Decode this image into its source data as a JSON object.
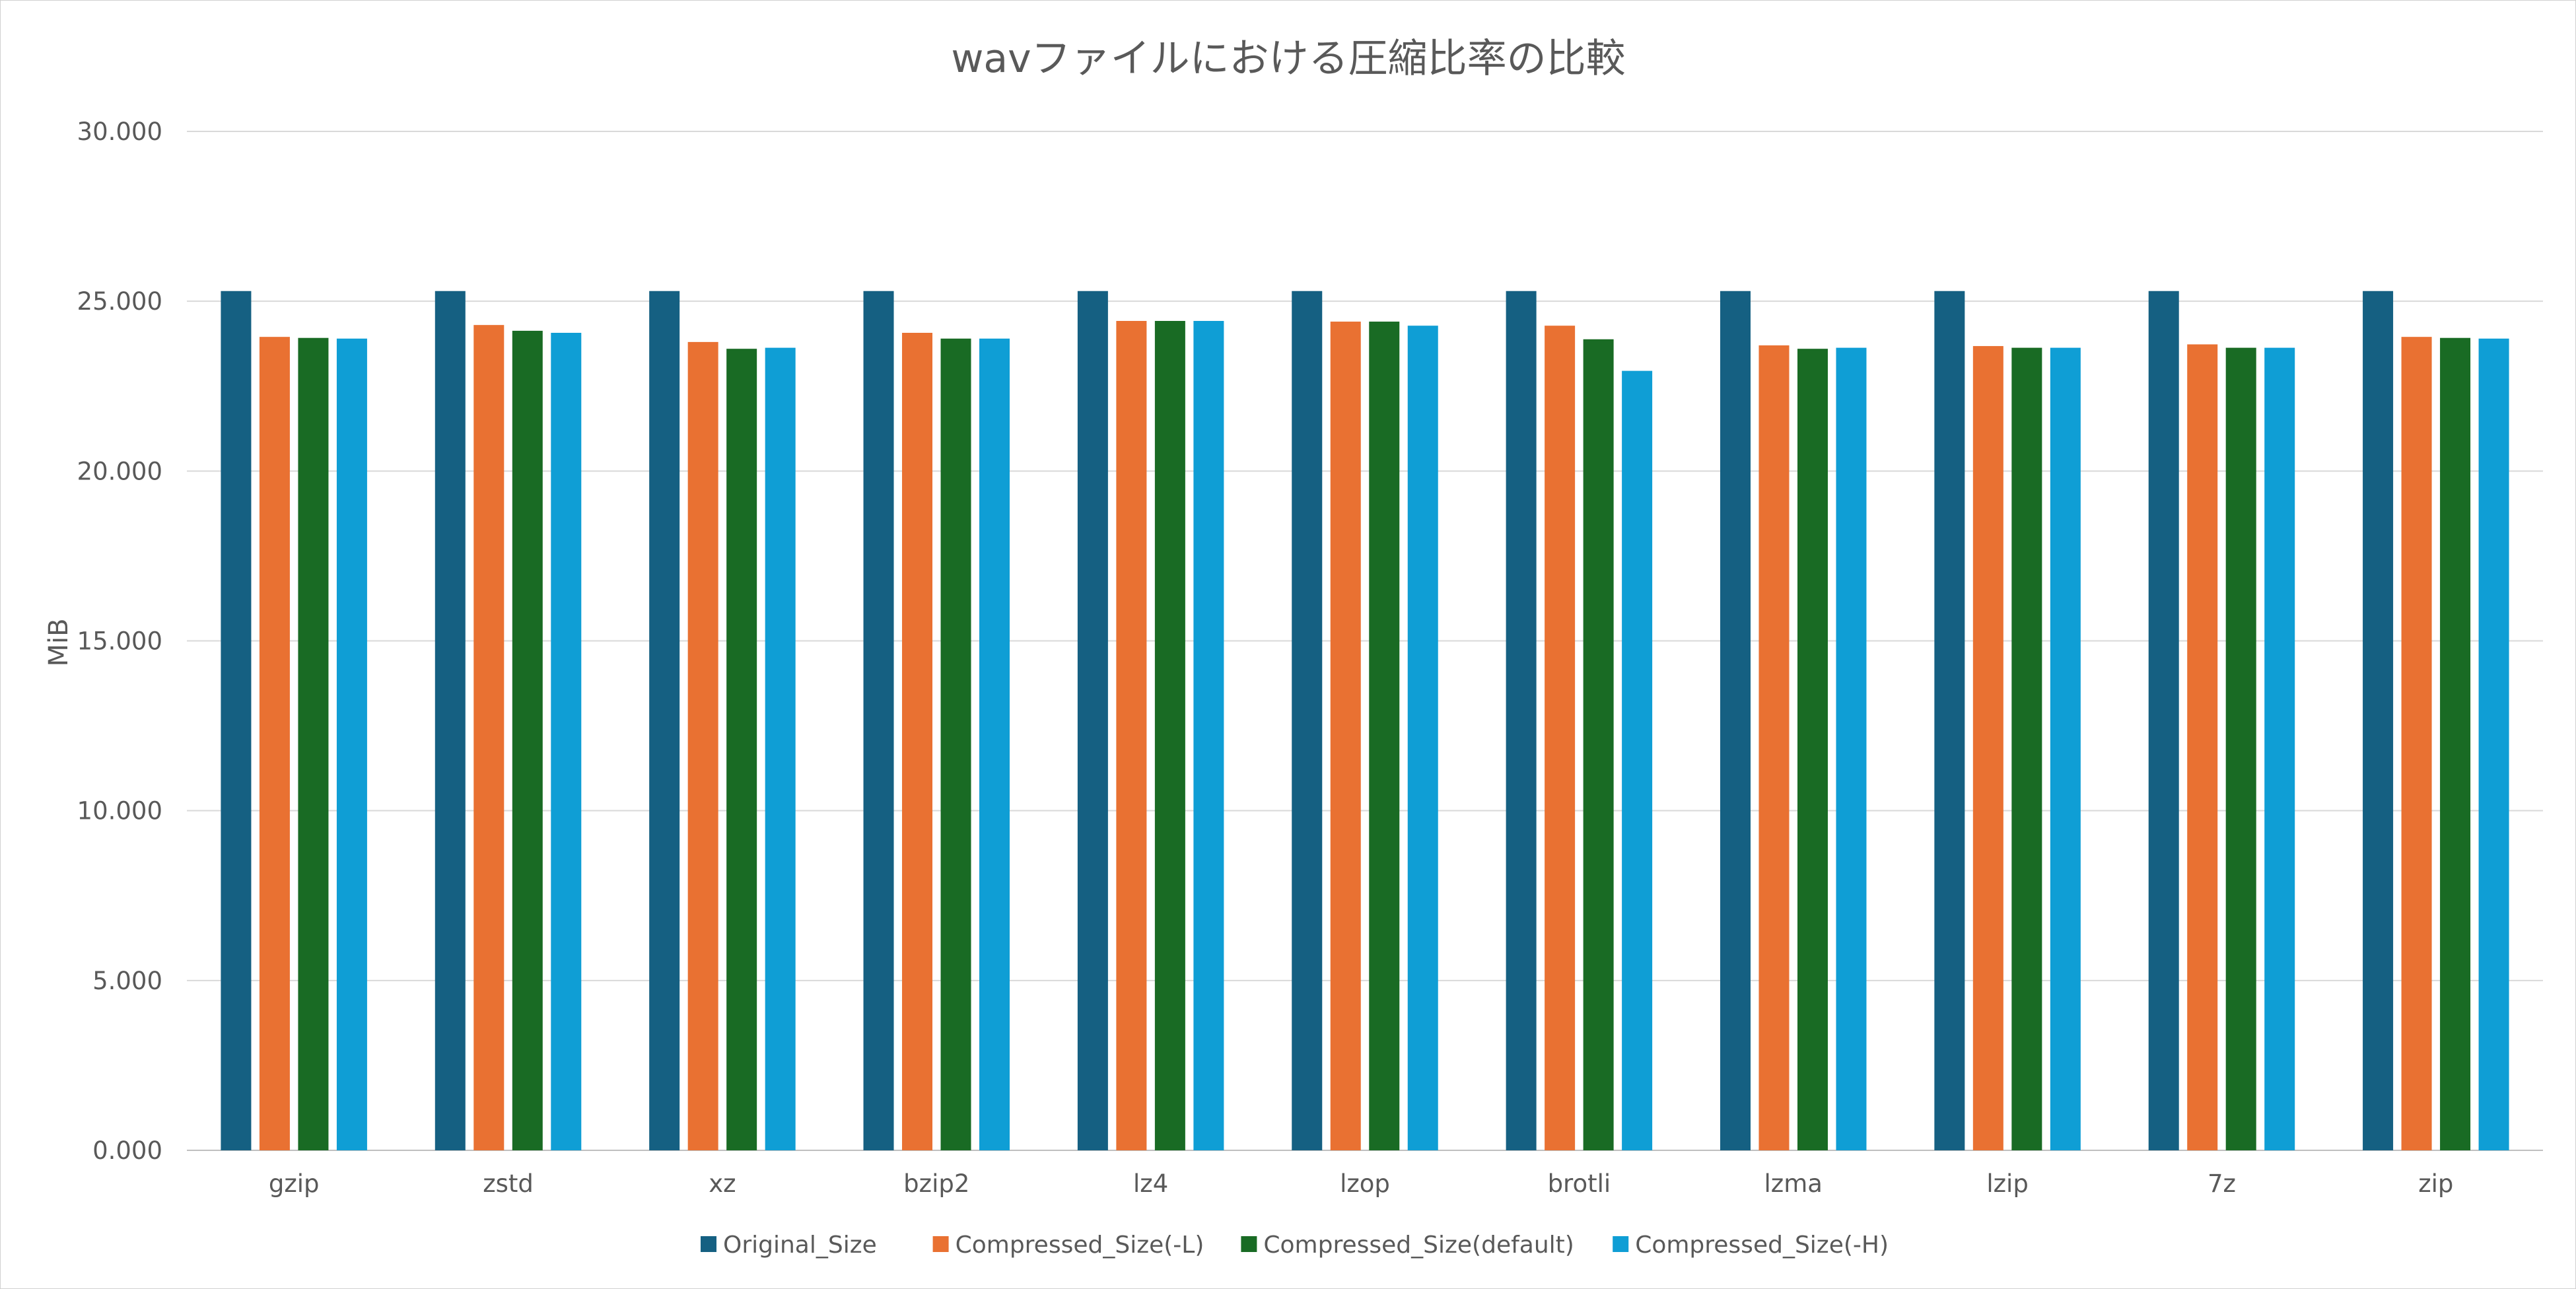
{
  "chart_data": {
    "type": "bar",
    "title": "wavファイルにおける圧縮比率の比較",
    "xlabel": "",
    "ylabel": "MiB",
    "ylim": [
      0,
      30
    ],
    "yticks": [
      0,
      5,
      10,
      15,
      20,
      25,
      30
    ],
    "ytick_labels": [
      "0.000",
      "5.000",
      "10.000",
      "15.000",
      "20.000",
      "25.000",
      "30.000"
    ],
    "grid": true,
    "legend_position": "bottom",
    "categories": [
      "gzip",
      "zstd",
      "xz",
      "bzip2",
      "lz4",
      "lzop",
      "brotli",
      "lzma",
      "lzip",
      "7z",
      "zip"
    ],
    "series": [
      {
        "name": "Original_Size",
        "color": "#156082",
        "values": [
          25.3,
          25.3,
          25.3,
          25.3,
          25.3,
          25.3,
          25.3,
          25.3,
          25.3,
          25.3,
          25.3
        ]
      },
      {
        "name": "Compressed_Size(-L)",
        "color": "#E97132",
        "values": [
          23.95,
          24.3,
          23.8,
          24.07,
          24.42,
          24.4,
          24.28,
          23.7,
          23.68,
          23.73,
          23.95
        ]
      },
      {
        "name": "Compressed_Size(default)",
        "color": "#196B24",
        "values": [
          23.92,
          24.13,
          23.6,
          23.9,
          24.42,
          24.4,
          23.88,
          23.6,
          23.63,
          23.63,
          23.92
        ]
      },
      {
        "name": "Compressed_Size(-H)",
        "color": "#0F9ED5",
        "values": [
          23.9,
          24.07,
          23.63,
          23.9,
          24.42,
          24.28,
          22.95,
          23.63,
          23.63,
          23.63,
          23.9
        ]
      }
    ]
  }
}
